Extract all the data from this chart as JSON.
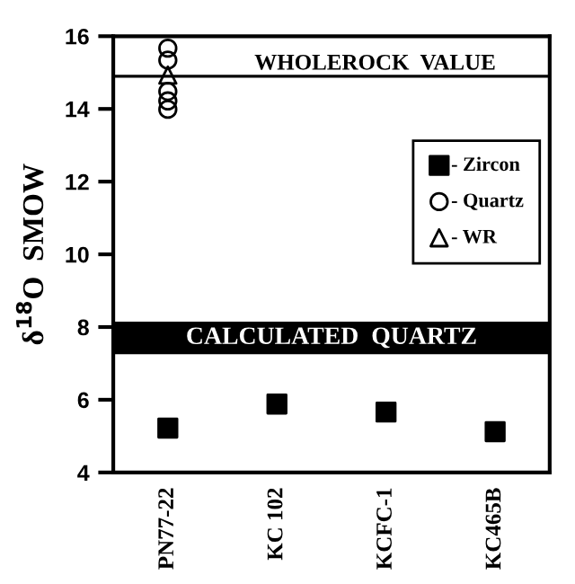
{
  "chart_data": {
    "type": "scatter",
    "ylabel": "δ$^{18}$O  SMOW",
    "categories": [
      "PN77-22",
      "KC 102",
      "KCFC-1",
      "KC465B"
    ],
    "series": [
      {
        "name": "- Zircon",
        "color": "#000000",
        "marker": "square",
        "values": [
          5.22,
          5.88,
          5.66,
          5.12
        ]
      },
      {
        "name": "- Quartz",
        "color": "#000000",
        "marker": "circle",
        "x": [
          "PN77-22",
          "PN77-22",
          "PN77-22",
          "PN77-22",
          "PN77-22"
        ],
        "values": [
          15.67,
          15.34,
          14.48,
          14.22,
          13.99
        ]
      },
      {
        "name": "- WR",
        "color": "#000000",
        "marker": "triangle",
        "x": [
          "PN77-22"
        ],
        "values": [
          14.93
        ]
      }
    ],
    "ylim": [
      4,
      16
    ],
    "yticks": [
      4,
      6,
      8,
      10,
      12,
      14,
      16
    ],
    "ref_lines": [
      {
        "axis": "y",
        "value": 14.9,
        "label": "WHOLEROCK  VALUE",
        "color": "#000000"
      }
    ],
    "bands": [
      {
        "axis": "y",
        "from": 7.25,
        "to": 8.15,
        "label": "CALCULATED  QUARTZ",
        "color": "#000000"
      }
    ],
    "grid": false,
    "legend": "right"
  }
}
